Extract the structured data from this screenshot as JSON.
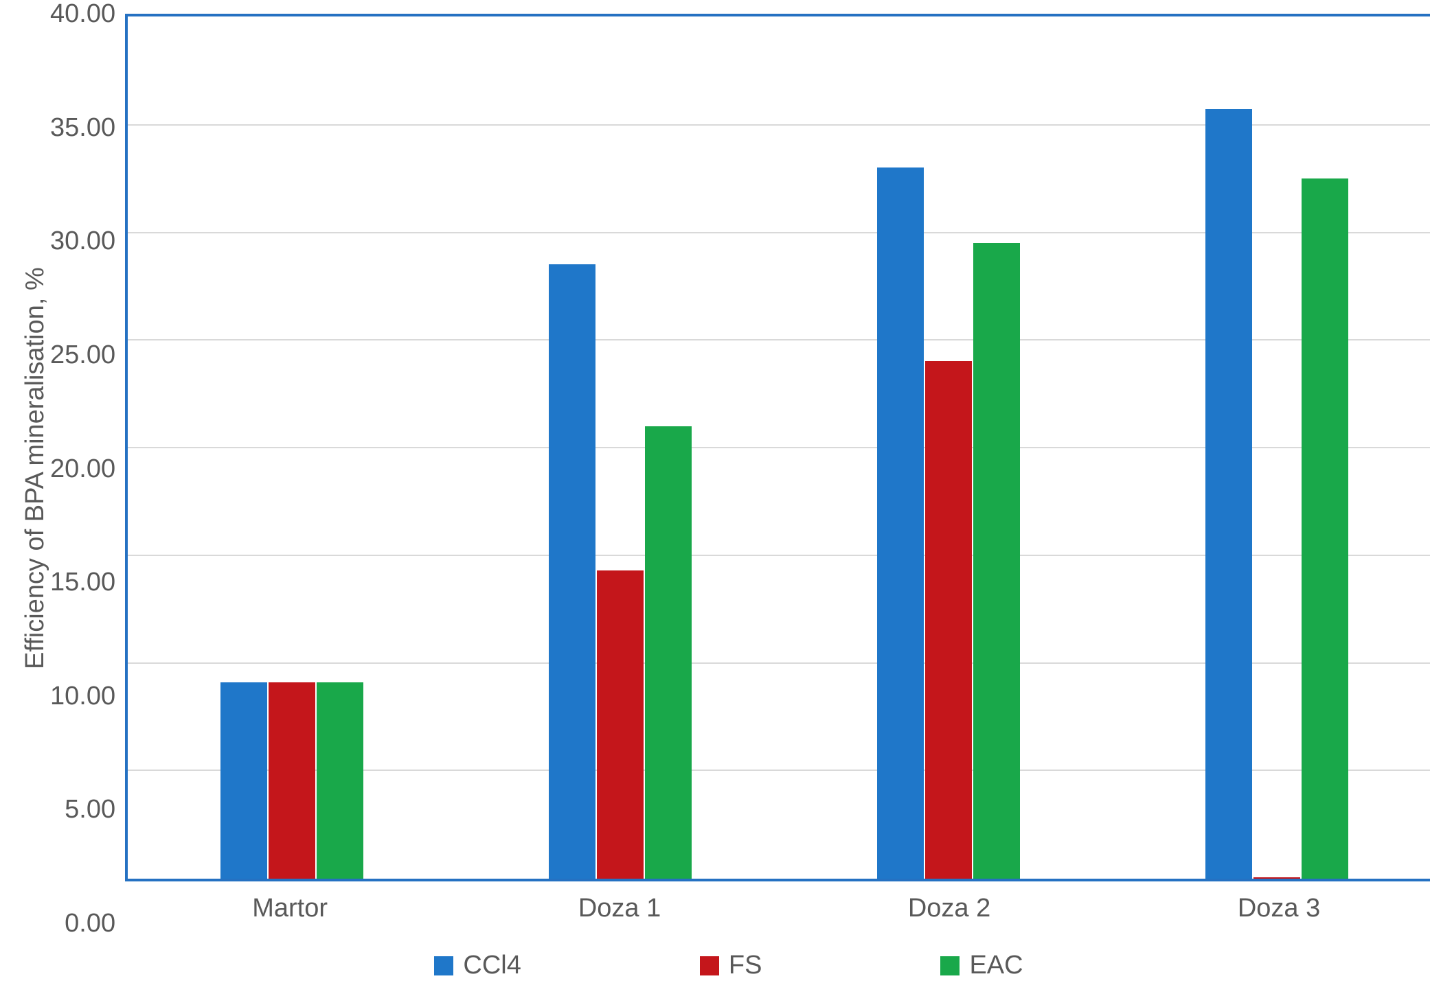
{
  "chart": {
    "type": "bar",
    "y_axis_label": "Efficiency of BPA mineralisation, %",
    "categories": [
      "Martor",
      "Doza 1",
      "Doza 2",
      "Doza 3"
    ],
    "series": [
      {
        "name": "CCl4",
        "color": "#1f77c9",
        "values": [
          9.1,
          28.5,
          33.0,
          35.7
        ]
      },
      {
        "name": "FS",
        "color": "#c4161b",
        "values": [
          9.1,
          14.3,
          24.0,
          0.05
        ]
      },
      {
        "name": "EAC",
        "color": "#19a84a",
        "values": [
          9.1,
          21.0,
          29.5,
          32.5
        ]
      }
    ],
    "ylim": [
      0,
      40
    ],
    "ytick_step": 5,
    "ytick_labels": [
      "40.00",
      "35.00",
      "30.00",
      "25.00",
      "20.00",
      "15.00",
      "10.00",
      "5.00",
      "0.00"
    ],
    "grid_color": "#d9d9d9",
    "border_color": "#2571c2",
    "background_color": "#ffffff",
    "text_color": "#595959",
    "label_fontsize": 38
  }
}
